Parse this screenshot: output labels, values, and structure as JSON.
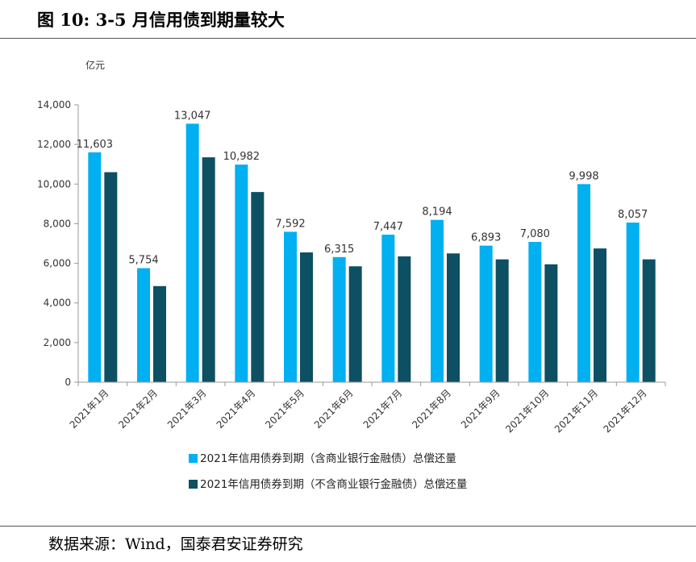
{
  "figure": {
    "title": "图 10:  3-5 月信用债到期量较大",
    "source": "数据来源：Wind，国泰君安证券研究"
  },
  "colors": {
    "series1": "#00B0F0",
    "series2": "#0D4F63"
  },
  "chart_data": {
    "type": "bar",
    "title": "",
    "ylabel": "亿元",
    "xlabel": "",
    "ylim": [
      0,
      14000
    ],
    "yticks": [
      0,
      2000,
      4000,
      6000,
      8000,
      10000,
      12000,
      14000
    ],
    "ytick_labels": [
      "0",
      "2,000",
      "4,000",
      "6,000",
      "8,000",
      "10,000",
      "12,000",
      "14,000"
    ],
    "categories": [
      "2021年1月",
      "2021年2月",
      "2021年3月",
      "2021年4月",
      "2021年5月",
      "2021年6月",
      "2021年7月",
      "2021年8月",
      "2021年9月",
      "2021年10月",
      "2021年11月",
      "2021年12月"
    ],
    "series": [
      {
        "name": "2021年信用债券到期（含商业银行金融债）总偿还量",
        "values": [
          11603,
          5754,
          13047,
          10982,
          7592,
          6315,
          7447,
          8194,
          6893,
          7080,
          9998,
          8057
        ],
        "labels": [
          "11,603",
          "5,754",
          "13,047",
          "10,982",
          "7,592",
          "6,315",
          "7,447",
          "8,194",
          "6,893",
          "7,080",
          "9,998",
          "8,057"
        ]
      },
      {
        "name": "2021年信用债券到期（不含商业银行金融债）总偿还量",
        "values": [
          10600,
          4850,
          11350,
          9600,
          6550,
          5850,
          6350,
          6500,
          6200,
          5950,
          6750,
          6200
        ]
      }
    ],
    "grid": false,
    "legend_position": "bottom"
  }
}
